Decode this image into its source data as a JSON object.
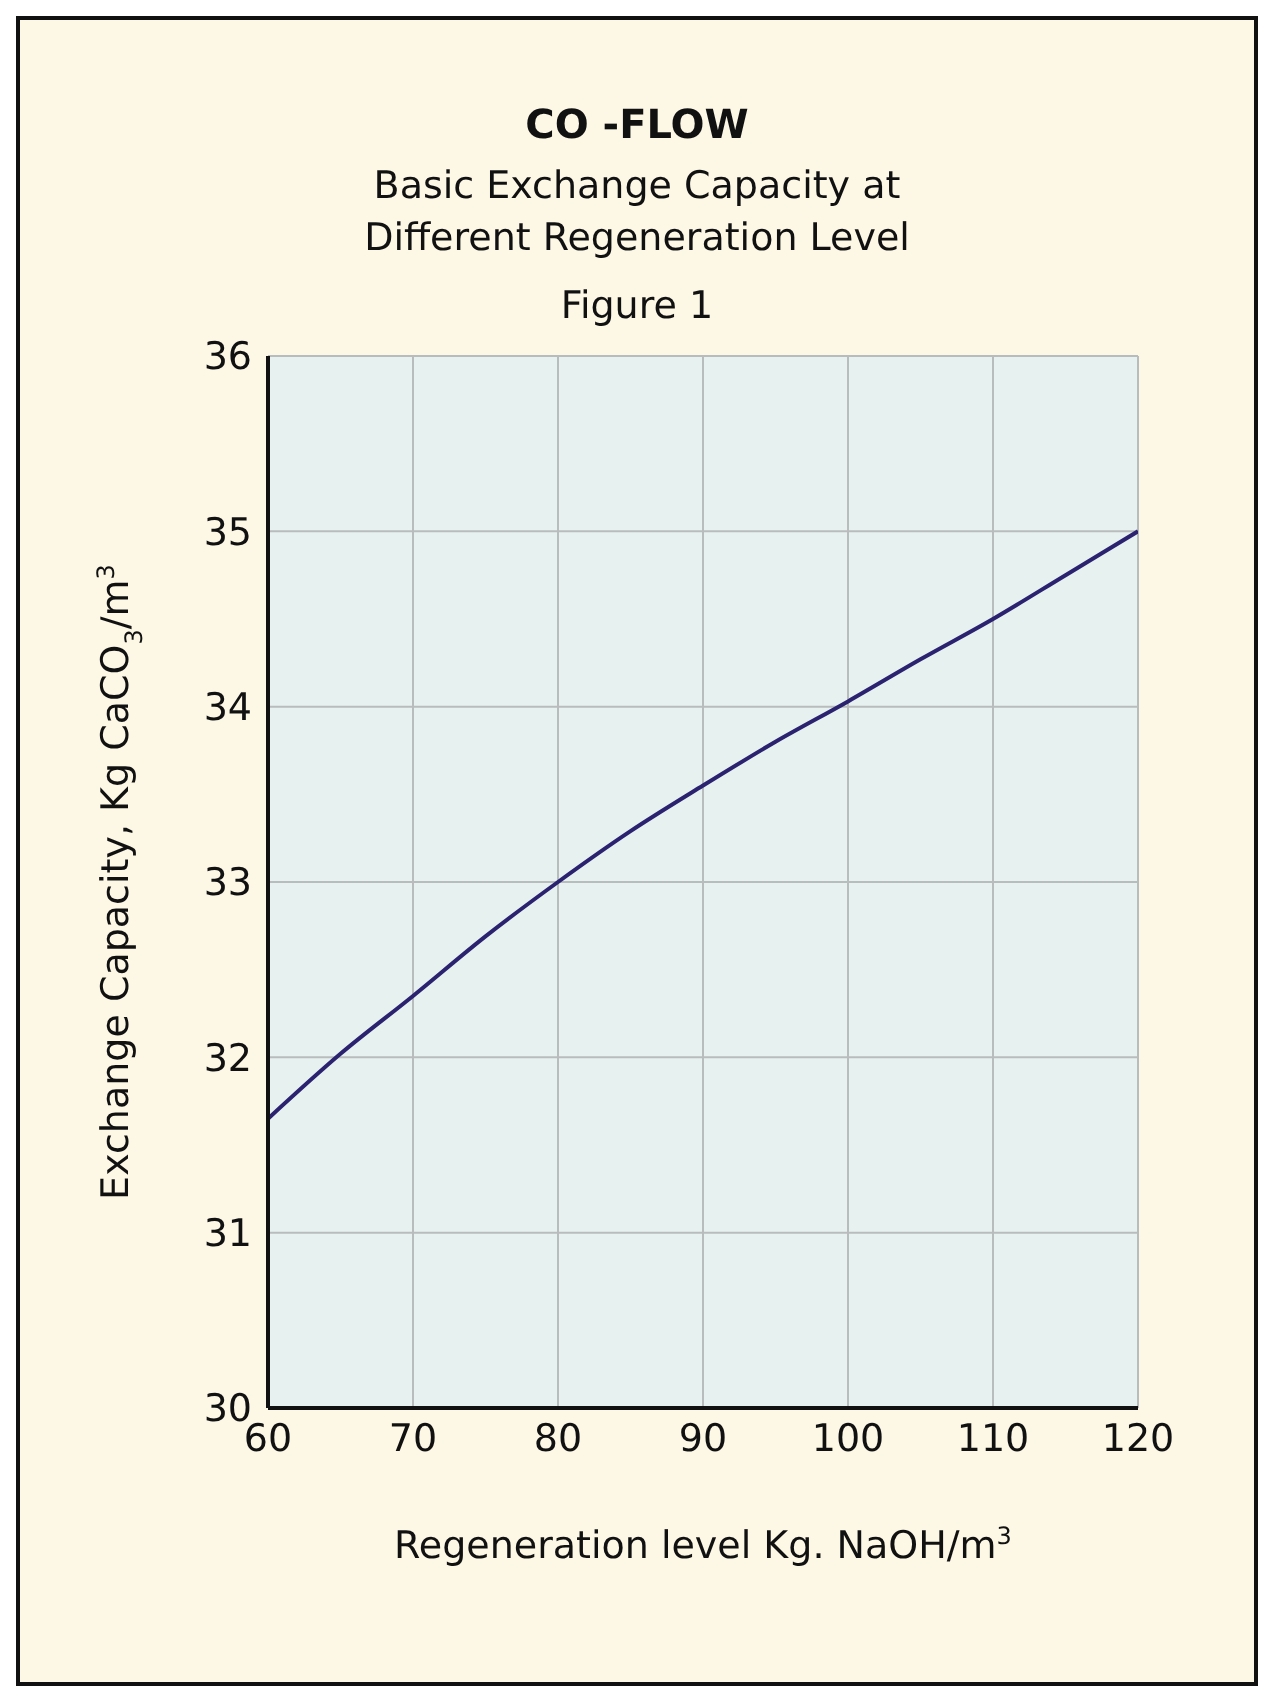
{
  "chart_data": {
    "type": "line",
    "title": "CO -FLOW",
    "subtitle": "Basic Exchange Capacity at Different Regeneration Level",
    "annotations": [
      "Figure 1"
    ],
    "xlabel": "Regeneration level Kg. NaOH/m$^{3}$",
    "ylabel": "Exchange Capacity, Kg CaCO$_{3}$/m$^{3}$",
    "x": [
      60,
      65,
      70,
      75,
      80,
      85,
      90,
      95,
      100,
      105,
      110,
      115,
      120
    ],
    "series": [
      {
        "color": "#2b2270",
        "values": [
          31.65,
          32.02,
          32.35,
          32.69,
          33.0,
          33.29,
          33.55,
          33.8,
          34.03,
          34.27,
          34.5,
          34.75,
          35.0
        ]
      }
    ],
    "xlim": [
      60,
      120
    ],
    "xticks": [
      60,
      70,
      80,
      90,
      100,
      110,
      120
    ],
    "ylim": [
      30,
      36
    ],
    "yticks": [
      30,
      31,
      32,
      33,
      34,
      35,
      36
    ],
    "grid": true,
    "legend": false,
    "marker": "none",
    "line_style": "solid"
  }
}
